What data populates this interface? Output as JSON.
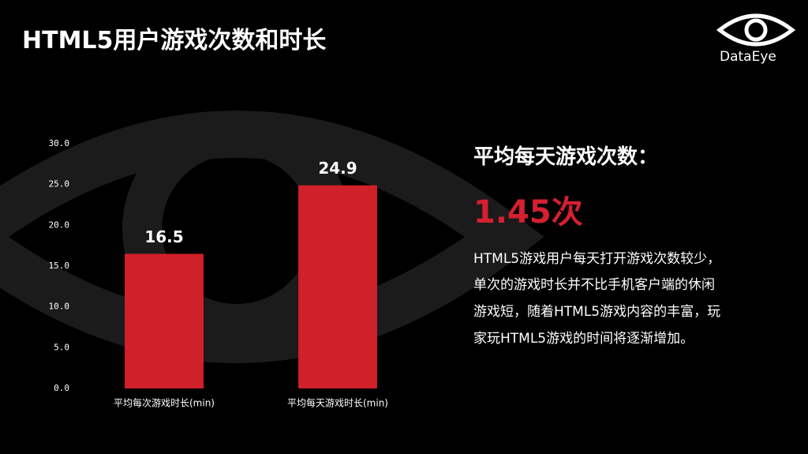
{
  "header": {
    "title": "HTML5用户游戏次数和时长"
  },
  "logo": {
    "text": "DataEye"
  },
  "chart_data": {
    "type": "bar",
    "categories": [
      "平均每次游戏时长(min)",
      "平均每天游戏时长(min)"
    ],
    "values": [
      16.5,
      24.9
    ],
    "color": "#d0202a",
    "ylim": [
      0,
      30
    ],
    "yticks": [
      {
        "value": 0,
        "label": "0.0"
      },
      {
        "value": 5,
        "label": "5.0"
      },
      {
        "value": 10,
        "label": "10.0"
      },
      {
        "value": 15,
        "label": "15.0"
      },
      {
        "value": 20,
        "label": "20.0"
      },
      {
        "value": 25,
        "label": "25.0"
      },
      {
        "value": 30,
        "label": "30.0"
      }
    ],
    "grid": false
  },
  "panel": {
    "heading": "平均每天游戏次数：",
    "highlight": "1.45次",
    "body": [
      "HTML5游戏用户每天打开游戏次数较少，",
      "单次的游戏时长并不比手机客户端的休闲",
      "游戏短，随着HTML5游戏内容的丰富，玩",
      "家玩HTML5游戏的时间将逐渐增加。"
    ]
  }
}
